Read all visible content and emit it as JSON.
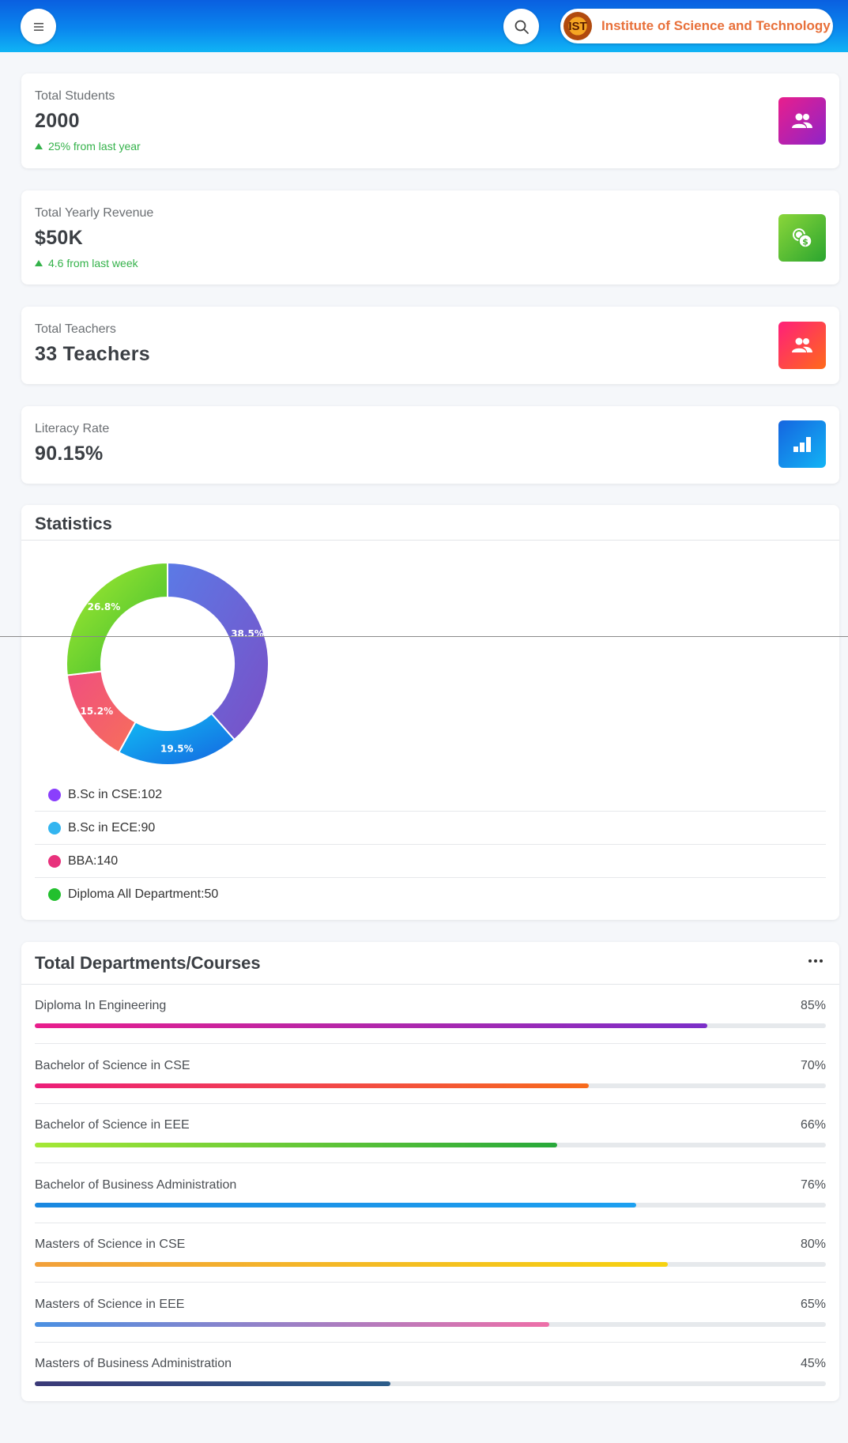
{
  "header": {
    "brand_logo_text": "IST",
    "brand_name": "Institute of Science and Technology"
  },
  "stats": [
    {
      "label": "Total Students",
      "value": "2000",
      "trend": "25% from last year",
      "icon": "users-icon",
      "color_from": "#e91e8c",
      "color_to": "#8e24c8"
    },
    {
      "label": "Total Yearly Revenue",
      "value": "$50K",
      "trend": "4.6 from last week",
      "icon": "coins-icon",
      "color_from": "#8bd63a",
      "color_to": "#2aa52f"
    },
    {
      "label": "Total Teachers",
      "value": "33 Teachers",
      "icon": "users-icon",
      "color_from": "#ff1f7a",
      "color_to": "#ff6a1a"
    },
    {
      "label": "Literacy Rate",
      "value": "90.15%",
      "icon": "bar-chart-icon",
      "color_from": "#1565e0",
      "color_to": "#12b4f5"
    }
  ],
  "statistics": {
    "title": "Statistics",
    "chart_data": {
      "type": "pie",
      "categories": [
        "B.Sc in CSE",
        "B.Sc in ECE",
        "BBA",
        "Diploma All Department"
      ],
      "slice_labels": [
        "38.5%",
        "19.5%",
        "15.2%",
        "26.8%"
      ],
      "values": [
        38.5,
        19.5,
        15.2,
        26.8
      ],
      "colors": [
        "#6a5fd6",
        "#1898f0",
        "#f2506a",
        "#6fd12a"
      ]
    },
    "legend": [
      {
        "text": "B.Sc in CSE:102",
        "color": "#8a3ffc"
      },
      {
        "text": "B.Sc in ECE:90",
        "color": "#33b5f0"
      },
      {
        "text": "BBA:140",
        "color": "#e8317c"
      },
      {
        "text": "Diploma All Department:50",
        "color": "#22c02e"
      }
    ]
  },
  "departments": {
    "title": "Total Departments/Courses",
    "more_icon": "more-horizontal-icon",
    "courses": [
      {
        "name": "Diploma In Engineering",
        "percent_label": "85%",
        "percent": 85,
        "from": "#e91e8c",
        "to": "#7b2fc8"
      },
      {
        "name": "Bachelor of Science in CSE",
        "percent_label": "70%",
        "percent": 70,
        "from": "#ec1e7a",
        "to": "#f76b1c"
      },
      {
        "name": "Bachelor of Science in EEE",
        "percent_label": "66%",
        "percent": 66,
        "from": "#a5e836",
        "to": "#27a83a"
      },
      {
        "name": "Bachelor of Business Administration",
        "percent_label": "76%",
        "percent": 76,
        "from": "#1a88e0",
        "to": "#1da0f0"
      },
      {
        "name": "Masters of Science in CSE",
        "percent_label": "80%",
        "percent": 80,
        "from": "#f2a03a",
        "to": "#f6d210"
      },
      {
        "name": "Masters of Science in EEE",
        "percent_label": "65%",
        "percent": 65,
        "from": "#4a90e2",
        "to": "#ee6fa8"
      },
      {
        "name": "Masters of Business Administration",
        "percent_label": "45%",
        "percent": 45,
        "from": "#3b3a78",
        "to": "#2c5d8a"
      }
    ]
  }
}
